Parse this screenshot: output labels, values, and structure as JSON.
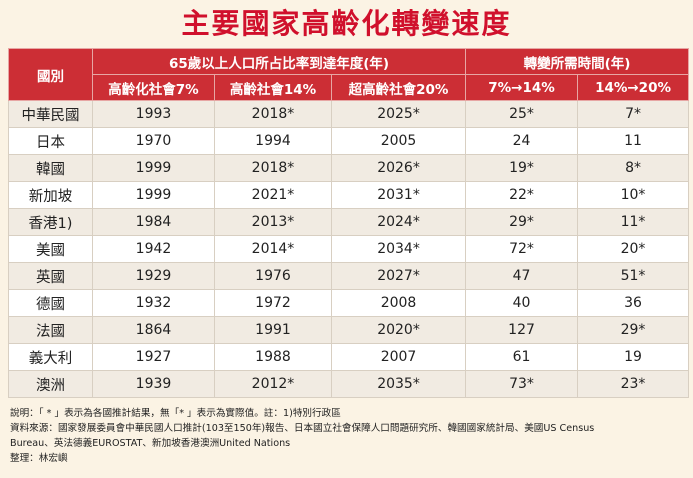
{
  "title": "主要國家高齡化轉變速度",
  "table": {
    "header_country": "國別",
    "group1": "65歲以上人口所占比率到達年度(年)",
    "group2": "轉變所需時間(年)",
    "subheaders": [
      "高齡化社會7%",
      "高齡社會14%",
      "超高齡社會20%",
      "7%→14%",
      "14%→20%"
    ],
    "rows": [
      {
        "country": "中華民國",
        "c1": "1993",
        "c2": "2018*",
        "c3": "2025*",
        "c4": "25*",
        "c5": "7*"
      },
      {
        "country": "日本",
        "c1": "1970",
        "c2": "1994",
        "c3": "2005",
        "c4": "24",
        "c5": "11"
      },
      {
        "country": "韓國",
        "c1": "1999",
        "c2": "2018*",
        "c3": "2026*",
        "c4": "19*",
        "c5": "8*"
      },
      {
        "country": "新加坡",
        "c1": "1999",
        "c2": "2021*",
        "c3": "2031*",
        "c4": "22*",
        "c5": "10*"
      },
      {
        "country": "香港1)",
        "c1": "1984",
        "c2": "2013*",
        "c3": "2024*",
        "c4": "29*",
        "c5": "11*"
      },
      {
        "country": "美國",
        "c1": "1942",
        "c2": "2014*",
        "c3": "2034*",
        "c4": "72*",
        "c5": "20*"
      },
      {
        "country": "英國",
        "c1": "1929",
        "c2": "1976",
        "c3": "2027*",
        "c4": "47",
        "c5": "51*"
      },
      {
        "country": "德國",
        "c1": "1932",
        "c2": "1972",
        "c3": "2008",
        "c4": "40",
        "c5": "36"
      },
      {
        "country": "法國",
        "c1": "1864",
        "c2": "1991",
        "c3": "2020*",
        "c4": "127",
        "c5": "29*"
      },
      {
        "country": "義大利",
        "c1": "1927",
        "c2": "1988",
        "c3": "2007",
        "c4": "61",
        "c5": "19"
      },
      {
        "country": "澳洲",
        "c1": "1939",
        "c2": "2012*",
        "c3": "2035*",
        "c4": "73*",
        "c5": "23*"
      }
    ]
  },
  "notes": {
    "line1": "說明：「 * 」表示為各國推計結果，無「* 」表示為實際值。註：1)特別行政區",
    "line2": "資料來源：國家發展委員會中華民國人口推計(103至150年)報告、日本國立社會保障人口問題研究所、韓國國家統計局、美國US Census",
    "line3": "Bureau、英法德義EUROSTAT、新加坡香港澳洲United Nations",
    "line4": "整理：林宏嶼"
  }
}
